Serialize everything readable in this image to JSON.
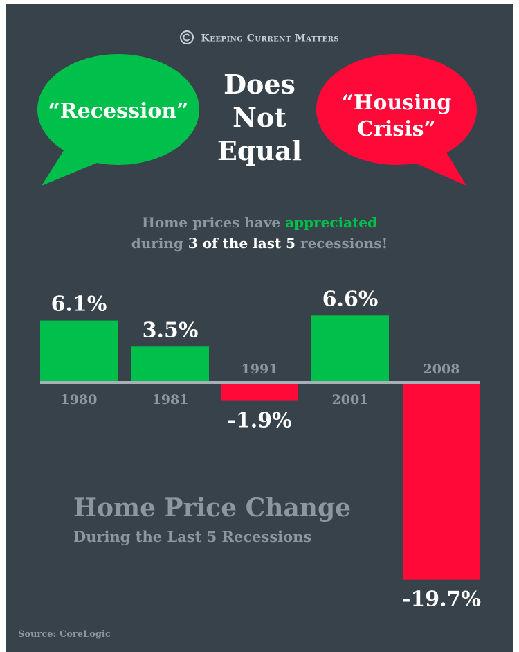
{
  "brand": {
    "name": "Keeping Current Matters"
  },
  "bubbles": {
    "left_line1": "“Recession”",
    "center_line1": "Does",
    "center_line2": "Not",
    "center_line3": "Equal",
    "right_line1": "“Housing",
    "right_line2": "Crisis”"
  },
  "headline": {
    "part1": "Home prices have ",
    "part2": "appreciated",
    "part3": "during ",
    "part4": "3 of the last 5",
    "part5": " recessions!"
  },
  "colors": {
    "background": "#37424a",
    "positive": "#00c04b",
    "negative": "#ff0a38",
    "baseline": "#a6b0b6",
    "muted_text": "#8c979f"
  },
  "chart_data": {
    "type": "bar",
    "title": "Home Price Change",
    "subtitle": "During the Last 5 Recessions",
    "categories": [
      "1980",
      "1981",
      "1991",
      "2001",
      "2008"
    ],
    "values": [
      6.1,
      3.5,
      -1.9,
      6.6,
      -19.7
    ],
    "value_labels": [
      "6.1%",
      "3.5%",
      "-1.9%",
      "6.6%",
      "-19.7%"
    ],
    "ylim": [
      -19.7,
      6.6
    ]
  },
  "source": "Source: CoreLogic"
}
